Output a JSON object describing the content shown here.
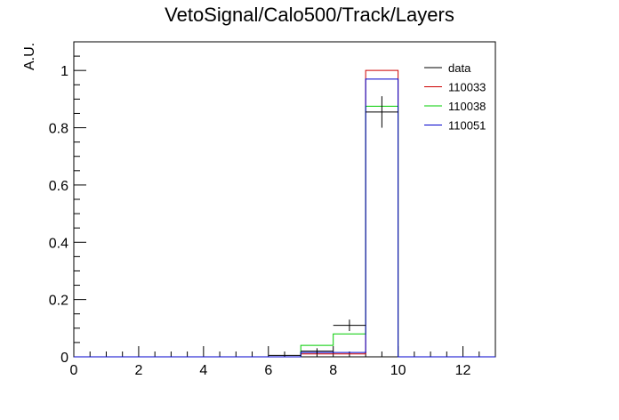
{
  "chart_data": {
    "type": "histogram",
    "title": "VetoSignal/Calo500/Track/Layers",
    "xlabel": "",
    "ylabel": "A.U.",
    "xlim": [
      0,
      13
    ],
    "ylim": [
      0,
      1.1
    ],
    "x_ticks": [
      0,
      2,
      4,
      6,
      8,
      10,
      12
    ],
    "y_ticks": [
      0,
      0.2,
      0.4,
      0.6,
      0.8,
      1
    ],
    "x_tick_labels": [
      "0",
      "2",
      "4",
      "6",
      "8",
      "10",
      "12"
    ],
    "y_tick_labels": [
      "0",
      "0.2",
      "0.4",
      "0.6",
      "0.8",
      "1"
    ],
    "legend_position": "top-right",
    "bin_edges": [
      0,
      1,
      2,
      3,
      4,
      5,
      6,
      7,
      8,
      9,
      10,
      11,
      12,
      13
    ],
    "series": [
      {
        "name": "110033",
        "color": "#cc0000",
        "style": "step",
        "values": [
          0,
          0,
          0,
          0,
          0,
          0,
          0,
          0.01,
          0.01,
          1.0,
          0,
          0,
          0
        ]
      },
      {
        "name": "110038",
        "color": "#00cc00",
        "style": "step",
        "values": [
          0,
          0,
          0,
          0,
          0,
          0,
          0,
          0.04,
          0.08,
          0.875,
          0,
          0,
          0
        ]
      },
      {
        "name": "110051",
        "color": "#0000cc",
        "style": "step",
        "values": [
          0,
          0,
          0,
          0,
          0,
          0,
          0,
          0.015,
          0.015,
          0.97,
          0,
          0,
          0
        ]
      },
      {
        "name": "data",
        "color": "#000000",
        "style": "errorbar",
        "points": [
          {
            "x": 6.5,
            "y": 0.005,
            "err": 0.004
          },
          {
            "x": 7.5,
            "y": 0.02,
            "err": 0.01
          },
          {
            "x": 8.5,
            "y": 0.11,
            "err": 0.02
          },
          {
            "x": 9.5,
            "y": 0.855,
            "err": 0.055
          }
        ]
      }
    ],
    "legend_order": [
      "data",
      "110033",
      "110038",
      "110051"
    ]
  }
}
